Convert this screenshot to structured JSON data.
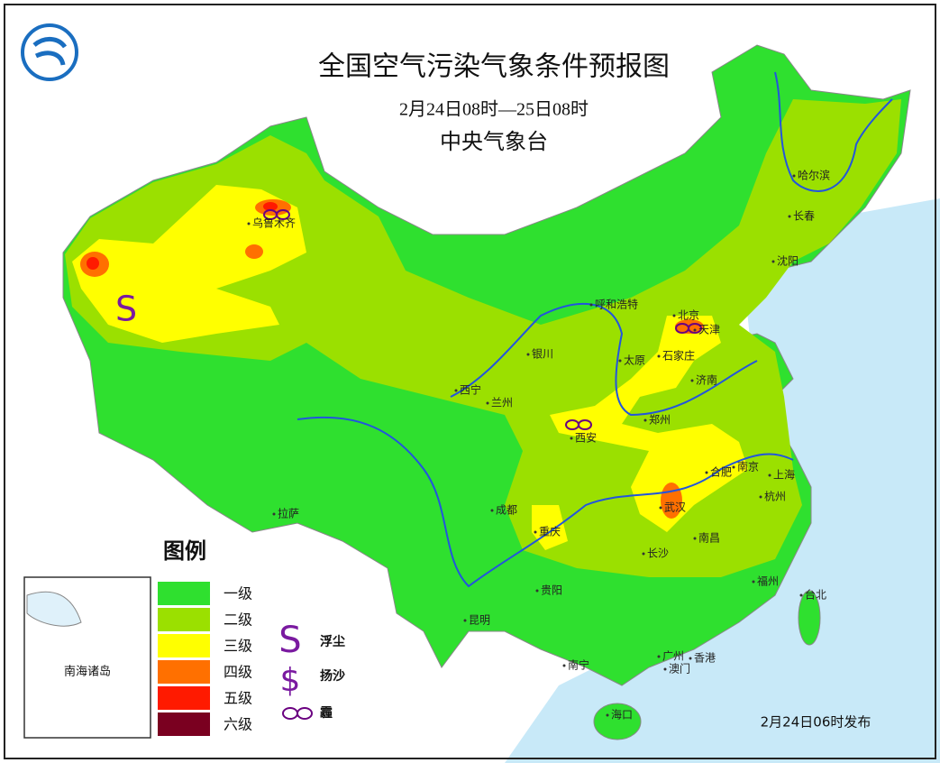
{
  "header": {
    "title": "全国空气污染气象条件预报图",
    "period": "2月24日08时—25日08时",
    "agency": "中央气象台"
  },
  "legend": {
    "title": "图例",
    "levels": [
      {
        "label": "一级",
        "color": "#2fe02f"
      },
      {
        "label": "二级",
        "color": "#9be000"
      },
      {
        "label": "三级",
        "color": "#ffff00"
      },
      {
        "label": "四级",
        "color": "#ff7000"
      },
      {
        "label": "五级",
        "color": "#ff1a00"
      },
      {
        "label": "六级",
        "color": "#7a0020"
      }
    ],
    "symbols": [
      {
        "symbol": "S",
        "label": "浮尘"
      },
      {
        "symbol": "$",
        "label": "扬沙"
      },
      {
        "label": "霾"
      }
    ]
  },
  "cities": [
    "乌鲁木齐",
    "哈尔滨",
    "长春",
    "沈阳",
    "呼和浩特",
    "北京",
    "天津",
    "石家庄",
    "太原",
    "济南",
    "银川",
    "西宁",
    "兰州",
    "郑州",
    "西安",
    "合肥",
    "南京",
    "上海",
    "成都",
    "武汉",
    "杭州",
    "拉萨",
    "重庆",
    "长沙",
    "南昌",
    "福州",
    "台北",
    "贵阳",
    "昆明",
    "南宁",
    "广州",
    "香港",
    "澳门",
    "海口"
  ],
  "inset": {
    "label": "南海诸岛"
  },
  "footer": {
    "issued": "2月24日06时发布"
  }
}
